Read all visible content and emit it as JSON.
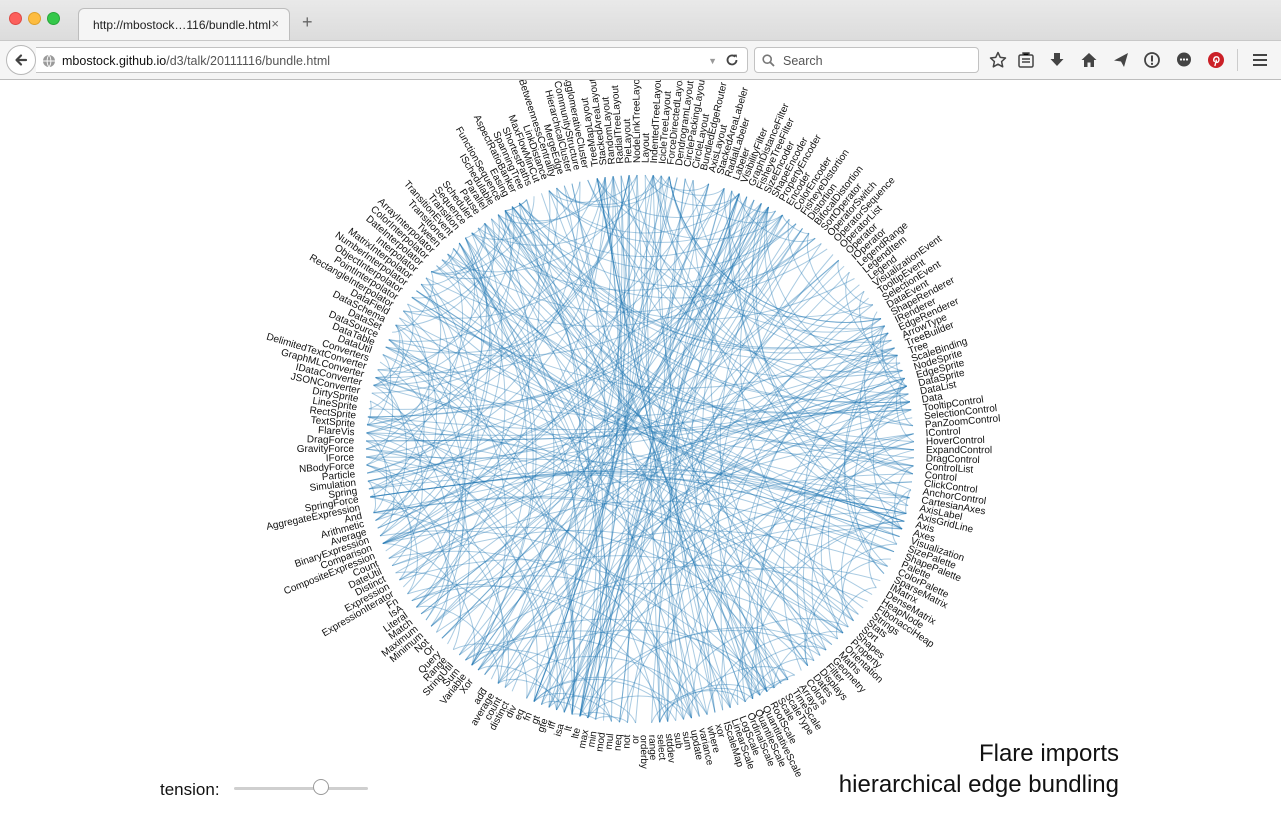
{
  "window": {
    "tab_title": "http://mbostock…116/bundle.html",
    "tab_close": "×",
    "new_tab": "+"
  },
  "navbar": {
    "url_host": "mbostock.github.io",
    "url_path": "/d3/talk/20111116/bundle.html",
    "search_placeholder": "Search",
    "toolbar_icons": [
      "bookmark-star-icon",
      "reading-list-icon",
      "download-icon",
      "home-icon",
      "send-icon",
      "info-icon",
      "chat-icon",
      "pinterest-icon",
      "hamburger-menu-icon"
    ]
  },
  "colors": {
    "link": "#1f77b4",
    "pinterest": "#cb2027"
  },
  "controls": {
    "tension_label": "tension:",
    "tension_value": 0.65
  },
  "title": {
    "line1": "Flare imports",
    "line2": "hierarchical edge bundling"
  },
  "chart_data": {
    "type": "hierarchical-edge-bundling",
    "nodes": [
      "TreeMapLayout",
      "StackedAreaLayout",
      "RandomLayout",
      "RadialTreeLayout",
      "PieLayout",
      "NodeLinkTreeLayout",
      "Layout",
      "IndentedTreeLayout",
      "IcicleTreeLayout",
      "ForceDirectedLayout",
      "DendrogramLayout",
      "CirclePackingLayout",
      "CircleLayout",
      "BundledEdgeRouter",
      "AxisLayout",
      "StackedAreaLabeler",
      "RadialLabeler",
      "Labeler",
      "VisibilityFilter",
      "GraphDistanceFilter",
      "FisheyeTreeFilter",
      "SizeEncoder",
      "ShapeEncoder",
      "PropertyEncoder",
      "Encoder",
      "ColorEncoder",
      "FisheyeDistortion",
      "Distortion",
      "BifocalDistortion",
      "SortOperator",
      "OperatorSwitch",
      "OperatorSequence",
      "OperatorList",
      "Operator",
      "IOperator",
      "LegendRange",
      "LegendItem",
      "Legend",
      "VisualizationEvent",
      "TooltipEvent",
      "SelectionEvent",
      "DataEvent",
      "ShapeRenderer",
      "IRenderer",
      "EdgeRenderer",
      "ArrowType",
      "TreeBuilder",
      "Tree",
      "ScaleBinding",
      "NodeSprite",
      "EdgeSprite",
      "DataSprite",
      "DataList",
      "Data",
      "TooltipControl",
      "SelectionControl",
      "PanZoomControl",
      "IControl",
      "HoverControl",
      "ExpandControl",
      "DragControl",
      "ControlList",
      "Control",
      "ClickControl",
      "AnchorControl",
      "CartesianAxes",
      "AxisLabel",
      "AxisGridLine",
      "Axis",
      "Axes",
      "Visualization",
      "SizePalette",
      "ShapePalette",
      "Palette",
      "ColorPalette",
      "SparseMatrix",
      "IMatrix",
      "DenseMatrix",
      "HeapNode",
      "FibonacciHeap",
      "Strings",
      "Stats",
      "Sort",
      "Shapes",
      "Property",
      "Orientation",
      "Maths",
      "Geometry",
      "Filter",
      "Displays",
      "Dates",
      "Colors",
      "Arrays",
      "TimeScale",
      "ScaleType",
      "Scale",
      "RootScale",
      "QuantitativeScale",
      "QuantileScale",
      "OrdinalScale",
      "LogScale",
      "LinearScale",
      "IScaleMap",
      "xor",
      "where",
      "variance",
      "update",
      "sum",
      "sub",
      "stddev",
      "select",
      "range",
      "orderby",
      "or",
      "not",
      "neq",
      "mul",
      "mod",
      "min",
      "max",
      "lte",
      "lt",
      "isa",
      "iff",
      "gte",
      "gt",
      "fn",
      "eq",
      "div",
      "distinct",
      "count",
      "average",
      "add",
      "_",
      "Xor",
      "Variable",
      "Sum",
      "StringUtil",
      "Range",
      "Query",
      "Or",
      "Not",
      "Minimum",
      "Maximum",
      "Match",
      "Literal",
      "IsA",
      "Fn",
      "ExpressionIterator",
      "Expression",
      "Distinct",
      "DateUtil",
      "Count",
      "CompositeExpression",
      "Comparison",
      "BinaryExpression",
      "Average",
      "Arithmetic",
      "And",
      "AggregateExpression",
      "SpringForce",
      "Spring",
      "Simulation",
      "Particle",
      "NBodyForce",
      "IForce",
      "GravityForce",
      "DragForce",
      "FlareVis",
      "TextSprite",
      "RectSprite",
      "LineSprite",
      "DirtySprite",
      "JSONConverter",
      "IDataConverter",
      "GraphMLConverter",
      "DelimitedTextConverter",
      "Converters",
      "DataUtil",
      "DataTable",
      "DataSource",
      "DataSet",
      "DataSchema",
      "DataField",
      "RectangleInterpolator",
      "PointInterpolator",
      "ObjectInterpolator",
      "NumberInterpolator",
      "MatrixInterpolator",
      "Interpolator",
      "DateInterpolator",
      "ColorInterpolator",
      "ArrayInterpolator",
      "Tween",
      "Transitioner",
      "TransitionEvent",
      "Transition",
      "Sequence",
      "Scheduler",
      "Pause",
      "Parallel",
      "ISchedulable",
      "FunctionSequence",
      "Easing",
      "AspectRatioBanker",
      "SpanningTree",
      "ShortestPaths",
      "MaxFlowMinCut",
      "LinkDistance",
      "BetweennessCentrality",
      "MergeEdge",
      "HierarchicalCluster",
      "CommunityStructure",
      "AgglomerativeCluster"
    ]
  }
}
